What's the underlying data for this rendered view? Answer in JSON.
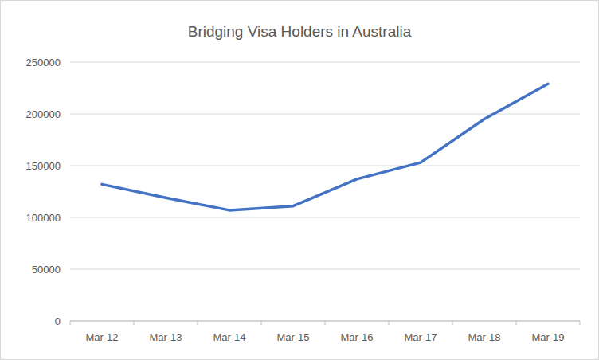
{
  "chart_data": {
    "type": "line",
    "title": "Bridging Visa Holders in Australia",
    "categories": [
      "Mar-12",
      "Mar-13",
      "Mar-14",
      "Mar-15",
      "Mar-16",
      "Mar-17",
      "Mar-18",
      "Mar-19"
    ],
    "values": [
      132000,
      119000,
      107000,
      111000,
      137000,
      153000,
      195000,
      229000
    ],
    "color": "#4472c4",
    "ylim": [
      0,
      250000
    ],
    "yticks": [
      0,
      50000,
      100000,
      150000,
      200000,
      250000
    ],
    "grid": true
  }
}
